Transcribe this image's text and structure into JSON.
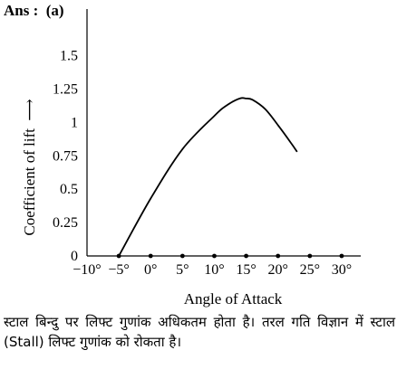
{
  "answer": {
    "prefix": "Ans :",
    "option": "(a)"
  },
  "chart_data": {
    "type": "line",
    "xlabel": "Angle of Attack",
    "ylabel": "Coefficient of lift",
    "ylabel_arrow": "⟶",
    "x_ticks": [
      {
        "value": -10,
        "label": "−10°"
      },
      {
        "value": -5,
        "label": "−5°"
      },
      {
        "value": 0,
        "label": "0°"
      },
      {
        "value": 5,
        "label": "5°"
      },
      {
        "value": 10,
        "label": "10°"
      },
      {
        "value": 15,
        "label": "15°"
      },
      {
        "value": 20,
        "label": "20°"
      },
      {
        "value": 25,
        "label": "25°"
      },
      {
        "value": 30,
        "label": "30°"
      }
    ],
    "y_ticks": [
      {
        "value": 0,
        "label": "0"
      },
      {
        "value": 0.25,
        "label": "0.25"
      },
      {
        "value": 0.5,
        "label": "0.5"
      },
      {
        "value": 0.75,
        "label": "0.75"
      },
      {
        "value": 1,
        "label": "1"
      },
      {
        "value": 1.25,
        "label": "1.25"
      },
      {
        "value": 1.5,
        "label": "1.5"
      }
    ],
    "xlim": [
      -10,
      33
    ],
    "ylim": [
      0,
      1.85
    ],
    "grid": false,
    "series": [
      {
        "x": [
          -5,
          0,
          5,
          10,
          12,
          14,
          15,
          16,
          18,
          20,
          22,
          23
        ],
        "y": [
          0,
          0.43,
          0.8,
          1.05,
          1.13,
          1.18,
          1.18,
          1.17,
          1.1,
          0.98,
          0.85,
          0.78
        ]
      }
    ]
  },
  "explanation": "स्टाल बिन्दु पर लिफ्ट गुणांक अधिकतम होता है। तरल गति विज्ञान में स्टाल (Stall) लिफ्ट गुणांक को रोकता है।"
}
